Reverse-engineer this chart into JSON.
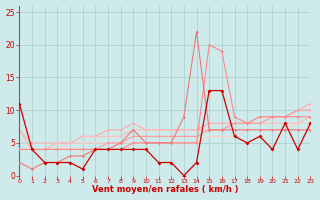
{
  "x": [
    0,
    1,
    2,
    3,
    4,
    5,
    6,
    7,
    8,
    9,
    10,
    11,
    12,
    13,
    14,
    15,
    16,
    17,
    18,
    19,
    20,
    21,
    22,
    23
  ],
  "lines": [
    {
      "y": [
        11,
        4,
        4,
        4,
        5,
        5,
        5,
        5,
        5,
        5,
        5,
        5,
        5,
        5,
        5,
        6,
        6,
        6,
        7,
        7,
        7,
        7,
        8,
        8
      ],
      "color": "#ffcccc",
      "lw": 0.8,
      "marker": "D",
      "ms": 1.5,
      "zorder": 2
    },
    {
      "y": [
        7,
        4,
        4,
        5,
        5,
        6,
        6,
        7,
        7,
        8,
        7,
        7,
        7,
        7,
        7,
        8,
        8,
        8,
        8,
        9,
        9,
        9,
        10,
        11
      ],
      "color": "#ffaaaa",
      "lw": 0.8,
      "marker": "D",
      "ms": 1.5,
      "zorder": 2
    },
    {
      "y": [
        7,
        5,
        5,
        5,
        5,
        6,
        6,
        6,
        6,
        7,
        7,
        7,
        7,
        7,
        7,
        7,
        7,
        8,
        8,
        8,
        8,
        8,
        8,
        9
      ],
      "color": "#ffbbbb",
      "lw": 0.8,
      "marker": "D",
      "ms": 1.5,
      "zorder": 2
    },
    {
      "y": [
        4,
        4,
        4,
        4,
        4,
        4,
        4,
        5,
        5,
        6,
        6,
        6,
        6,
        6,
        6,
        7,
        7,
        8,
        8,
        8,
        9,
        9,
        10,
        10
      ],
      "color": "#ff9999",
      "lw": 0.8,
      "marker": "D",
      "ms": 1.5,
      "zorder": 3
    },
    {
      "y": [
        4,
        4,
        4,
        4,
        4,
        4,
        4,
        4,
        4,
        5,
        5,
        5,
        5,
        5,
        5,
        20,
        19,
        9,
        8,
        9,
        9,
        9,
        9,
        9
      ],
      "color": "#ff8888",
      "lw": 0.8,
      "marker": "D",
      "ms": 1.5,
      "zorder": 3
    },
    {
      "y": [
        2,
        1,
        2,
        2,
        3,
        3,
        4,
        4,
        5,
        7,
        5,
        5,
        5,
        9,
        22,
        7,
        7,
        7,
        7,
        7,
        7,
        7,
        7,
        7
      ],
      "color": "#ee7777",
      "lw": 0.8,
      "marker": "D",
      "ms": 1.5,
      "zorder": 4
    },
    {
      "y": [
        11,
        4,
        2,
        2,
        2,
        1,
        4,
        4,
        4,
        4,
        4,
        2,
        2,
        0,
        2,
        13,
        13,
        6,
        5,
        6,
        4,
        8,
        4,
        8
      ],
      "color": "#cc0000",
      "lw": 0.9,
      "marker": "D",
      "ms": 2.0,
      "zorder": 5
    }
  ],
  "xlim": [
    0,
    23
  ],
  "ylim": [
    0,
    26
  ],
  "yticks": [
    0,
    5,
    10,
    15,
    20,
    25
  ],
  "xticks": [
    0,
    1,
    2,
    3,
    4,
    5,
    6,
    7,
    8,
    9,
    10,
    11,
    12,
    13,
    14,
    15,
    16,
    17,
    18,
    19,
    20,
    21,
    22,
    23
  ],
  "xlabel": "Vent moyen/en rafales ( km/h )",
  "bg_color": "#ceeaea",
  "grid_color": "#aacccc",
  "tick_color": "#cc0000",
  "label_color": "#cc0000"
}
